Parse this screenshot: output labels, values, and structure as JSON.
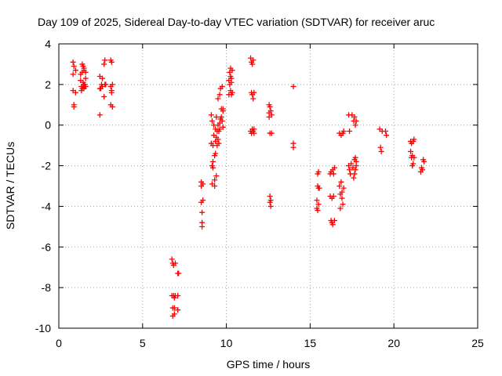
{
  "chart_data": {
    "type": "scatter",
    "title": "Day 109 of 2025, Sidereal Day-to-day VTEC variation (SDTVAR) for receiver aruc",
    "xlabel": "GPS time / hours",
    "ylabel": "SDTVAR / TECUs",
    "xlim": [
      0,
      25
    ],
    "ylim": [
      -10,
      4
    ],
    "xticks": [
      0,
      5,
      10,
      15,
      20,
      25
    ],
    "yticks": [
      -10,
      -8,
      -6,
      -4,
      -2,
      0,
      2,
      4
    ],
    "xtick_labels": [
      "0",
      "5",
      "10",
      "15",
      "20",
      "25"
    ],
    "ytick_labels": [
      "-10",
      "-8",
      "-6",
      "-4",
      "-2",
      "0",
      "2",
      "4"
    ],
    "grid": true,
    "marker": "plus",
    "series": [
      {
        "name": "SDTVAR",
        "color": "#ff0000",
        "x": [
          0.85,
          0.85,
          0.85,
          0.9,
          0.9,
          0.9,
          1.0,
          1.0,
          1.3,
          1.3,
          1.35,
          1.35,
          1.4,
          1.4,
          1.4,
          1.45,
          1.45,
          1.45,
          1.5,
          1.5,
          1.5,
          1.5,
          1.55,
          1.55,
          1.6,
          1.6,
          1.6,
          2.45,
          2.45,
          2.45,
          2.5,
          2.55,
          2.6,
          2.6,
          2.7,
          2.7,
          2.75,
          2.75,
          2.8,
          3.1,
          3.1,
          3.1,
          3.15,
          3.15,
          3.15,
          3.2,
          3.2,
          6.75,
          6.75,
          6.8,
          6.8,
          6.8,
          6.85,
          6.85,
          6.9,
          6.9,
          6.9,
          6.95,
          6.95,
          7.1,
          7.1,
          7.1,
          7.15,
          8.5,
          8.5,
          8.5,
          8.55,
          8.55,
          8.55,
          8.6,
          8.6,
          9.1,
          9.1,
          9.15,
          9.15,
          9.15,
          9.2,
          9.2,
          9.2,
          9.25,
          9.25,
          9.3,
          9.3,
          9.3,
          9.35,
          9.35,
          9.35,
          9.4,
          9.4,
          9.4,
          9.45,
          9.45,
          9.5,
          9.5,
          9.5,
          9.55,
          9.55,
          9.6,
          9.6,
          9.6,
          9.65,
          9.65,
          9.7,
          9.7,
          9.75,
          9.75,
          9.8,
          9.8,
          9.8,
          10.15,
          10.15,
          10.2,
          10.2,
          10.25,
          10.25,
          10.25,
          10.3,
          10.3,
          10.3,
          10.35,
          10.35,
          11.45,
          11.45,
          11.5,
          11.5,
          11.5,
          11.55,
          11.55,
          11.55,
          11.6,
          11.6,
          11.6,
          11.65,
          11.65,
          11.65,
          12.55,
          12.55,
          12.55,
          12.6,
          12.6,
          12.6,
          12.6,
          12.65,
          12.65,
          12.65,
          12.7,
          12.7,
          14.0,
          14.0,
          14.0,
          15.4,
          15.4,
          15.45,
          15.45,
          15.45,
          15.5,
          15.5,
          15.5,
          15.55,
          16.2,
          16.2,
          16.25,
          16.25,
          16.3,
          16.3,
          16.35,
          16.35,
          16.4,
          16.4,
          16.45,
          16.45,
          16.75,
          16.75,
          16.8,
          16.8,
          16.85,
          16.85,
          16.9,
          16.9,
          16.95,
          16.95,
          17.0,
          17.0,
          17.3,
          17.3,
          17.35,
          17.35,
          17.4,
          17.45,
          17.5,
          17.55,
          17.6,
          17.6,
          17.65,
          17.65,
          17.65,
          17.7,
          17.7,
          17.7,
          17.75,
          17.75,
          17.75,
          19.15,
          19.2,
          19.25,
          19.3,
          19.5,
          19.55,
          21.0,
          21.0,
          21.05,
          21.05,
          21.1,
          21.1,
          21.15,
          21.15,
          21.2,
          21.2,
          21.6,
          21.65,
          21.7,
          21.75,
          21.8
        ],
        "y": [
          3.1,
          2.5,
          1.7,
          1.0,
          0.9,
          2.9,
          2.7,
          1.6,
          2.5,
          2.2,
          1.9,
          1.7,
          3.0,
          2.6,
          1.8,
          2.1,
          1.9,
          2.9,
          2.8,
          2.0,
          1.8,
          2.7,
          1.9,
          2.0,
          1.9,
          2.3,
          2.6,
          2.4,
          1.8,
          0.5,
          1.8,
          2.0,
          2.3,
          1.9,
          3.0,
          1.4,
          3.2,
          2.0,
          2.0,
          3.2,
          1.9,
          1.0,
          1.6,
          1.7,
          3.1,
          2.0,
          0.9,
          -6.6,
          -8.4,
          -6.8,
          -9.0,
          -9.4,
          -8.4,
          -6.9,
          -9.0,
          -9.3,
          -8.5,
          -6.8,
          -8.4,
          -7.3,
          -8.4,
          -9.1,
          -7.3,
          -2.8,
          -3.0,
          -3.8,
          -4.3,
          -4.8,
          -5.0,
          -3.7,
          -2.9,
          0.5,
          -0.9,
          0.2,
          -2.0,
          -2.9,
          -1.0,
          -1.8,
          -2.1,
          0.0,
          -0.5,
          -1.5,
          -2.7,
          -3.0,
          -0.2,
          -0.8,
          -1.4,
          0.4,
          -0.6,
          -2.5,
          -0.3,
          -1.0,
          0.0,
          -0.7,
          1.3,
          -0.3,
          -0.9,
          0.1,
          1.5,
          -0.2,
          0.3,
          1.8,
          0.4,
          0.8,
          0.2,
          1.9,
          0.8,
          0.7,
          -0.1,
          1.5,
          2.2,
          2.6,
          2.0,
          1.7,
          2.4,
          2.8,
          1.5,
          2.3,
          2.1,
          2.7,
          1.6,
          3.3,
          -0.3,
          3.1,
          1.6,
          -0.4,
          3.0,
          1.5,
          -0.2,
          3.2,
          1.3,
          -0.3,
          -0.4,
          1.6,
          -0.2,
          1.0,
          0.6,
          0.4,
          -0.4,
          -3.5,
          -3.8,
          0.9,
          0.7,
          -3.7,
          -4.0,
          0.5,
          -0.4,
          1.9,
          -0.9,
          -1.1,
          -3.7,
          -4.1,
          -3.0,
          -2.4,
          -4.2,
          -3.9,
          -2.3,
          -3.1,
          -3.1,
          -2.4,
          -3.5,
          -4.7,
          -2.3,
          -4.8,
          -3.6,
          -2.2,
          -4.9,
          -3.5,
          -2.4,
          -4.7,
          -2.1,
          -0.4,
          -3.0,
          -3.4,
          -4.1,
          -2.8,
          -0.5,
          -3.6,
          -3.3,
          -0.4,
          -3.9,
          -3.1,
          -0.3,
          0.5,
          -2.0,
          -0.3,
          -2.2,
          -2.4,
          -1.9,
          0.5,
          -2.1,
          0.2,
          -2.6,
          -1.7,
          0.4,
          -2.4,
          -1.6,
          -2.2,
          0.0,
          0.2,
          -2.0,
          -1.8,
          -0.2,
          -1.1,
          -1.3,
          -0.3,
          -0.3,
          -0.5,
          -0.8,
          -1.3,
          -1.6,
          -0.9,
          -1.5,
          -2.0,
          -1.9,
          -0.8,
          -1.6,
          -0.7,
          -2.3,
          -2.1,
          -2.2,
          -1.7,
          -1.8
        ]
      }
    ]
  }
}
